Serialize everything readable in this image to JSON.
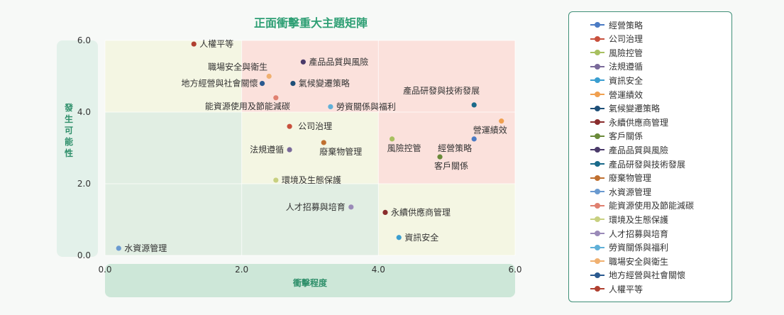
{
  "chart_data": {
    "type": "scatter",
    "title": "正面衝擊重大主題矩陣",
    "xlabel": "衝擊程度",
    "ylabel": "發生可能性",
    "xlim": [
      0,
      6
    ],
    "ylim": [
      0,
      6
    ],
    "x_ticks": [
      "0.0",
      "2.0",
      "4.0",
      "6.0"
    ],
    "y_ticks": [
      "0.0",
      "2.0",
      "4.0",
      "6.0"
    ],
    "grid": true,
    "legend_position": "right",
    "quadrant_colors": {
      "low": "#e1eee3",
      "mid": "#f4f6e3",
      "high": "#fbe1dc"
    },
    "series": [
      {
        "name": "經營策略",
        "color": "#4b7bc4",
        "x": 5.4,
        "y": 3.25
      },
      {
        "name": "公司治理",
        "color": "#c8503c",
        "x": 2.7,
        "y": 3.6
      },
      {
        "name": "風險控管",
        "color": "#a8c060",
        "x": 4.2,
        "y": 3.25
      },
      {
        "name": "法規遵循",
        "color": "#7a6a9a",
        "x": 2.7,
        "y": 2.95
      },
      {
        "name": "資訊安全",
        "color": "#3a9ed0",
        "x": 4.3,
        "y": 0.5
      },
      {
        "name": "營運績效",
        "color": "#f0a050",
        "x": 5.8,
        "y": 3.75
      },
      {
        "name": "氣候變遷策略",
        "color": "#1e4f78",
        "x": 2.75,
        "y": 4.8
      },
      {
        "name": "永續供應商管理",
        "color": "#8a2d2d",
        "x": 4.1,
        "y": 1.2
      },
      {
        "name": "客戶關係",
        "color": "#6a8a3a",
        "x": 4.9,
        "y": 2.75
      },
      {
        "name": "產品品質與風險",
        "color": "#4a3a6a",
        "x": 2.9,
        "y": 5.4
      },
      {
        "name": "產品研發與技術發展",
        "color": "#1a6a8a",
        "x": 5.4,
        "y": 4.2
      },
      {
        "name": "廢棄物管理",
        "color": "#c07030",
        "x": 3.2,
        "y": 3.15
      },
      {
        "name": "水資源管理",
        "color": "#6a9ad0",
        "x": 0.2,
        "y": 0.2
      },
      {
        "name": "能資源使用及節能減碳",
        "color": "#e08070",
        "x": 2.5,
        "y": 4.4
      },
      {
        "name": "環境及生態保護",
        "color": "#c8d080",
        "x": 2.5,
        "y": 2.1
      },
      {
        "name": "人才招募與培育",
        "color": "#9a8ab8",
        "x": 3.6,
        "y": 1.35
      },
      {
        "name": "勞資關係與福利",
        "color": "#60b0d8",
        "x": 3.3,
        "y": 4.15
      },
      {
        "name": "職場安全與衛生",
        "color": "#f0b070",
        "x": 2.4,
        "y": 5.0
      },
      {
        "name": "地方經營與社會關懷",
        "color": "#2a5a90",
        "x": 2.3,
        "y": 4.8
      },
      {
        "name": "人權平等",
        "color": "#b04030",
        "x": 1.3,
        "y": 5.9
      }
    ]
  }
}
